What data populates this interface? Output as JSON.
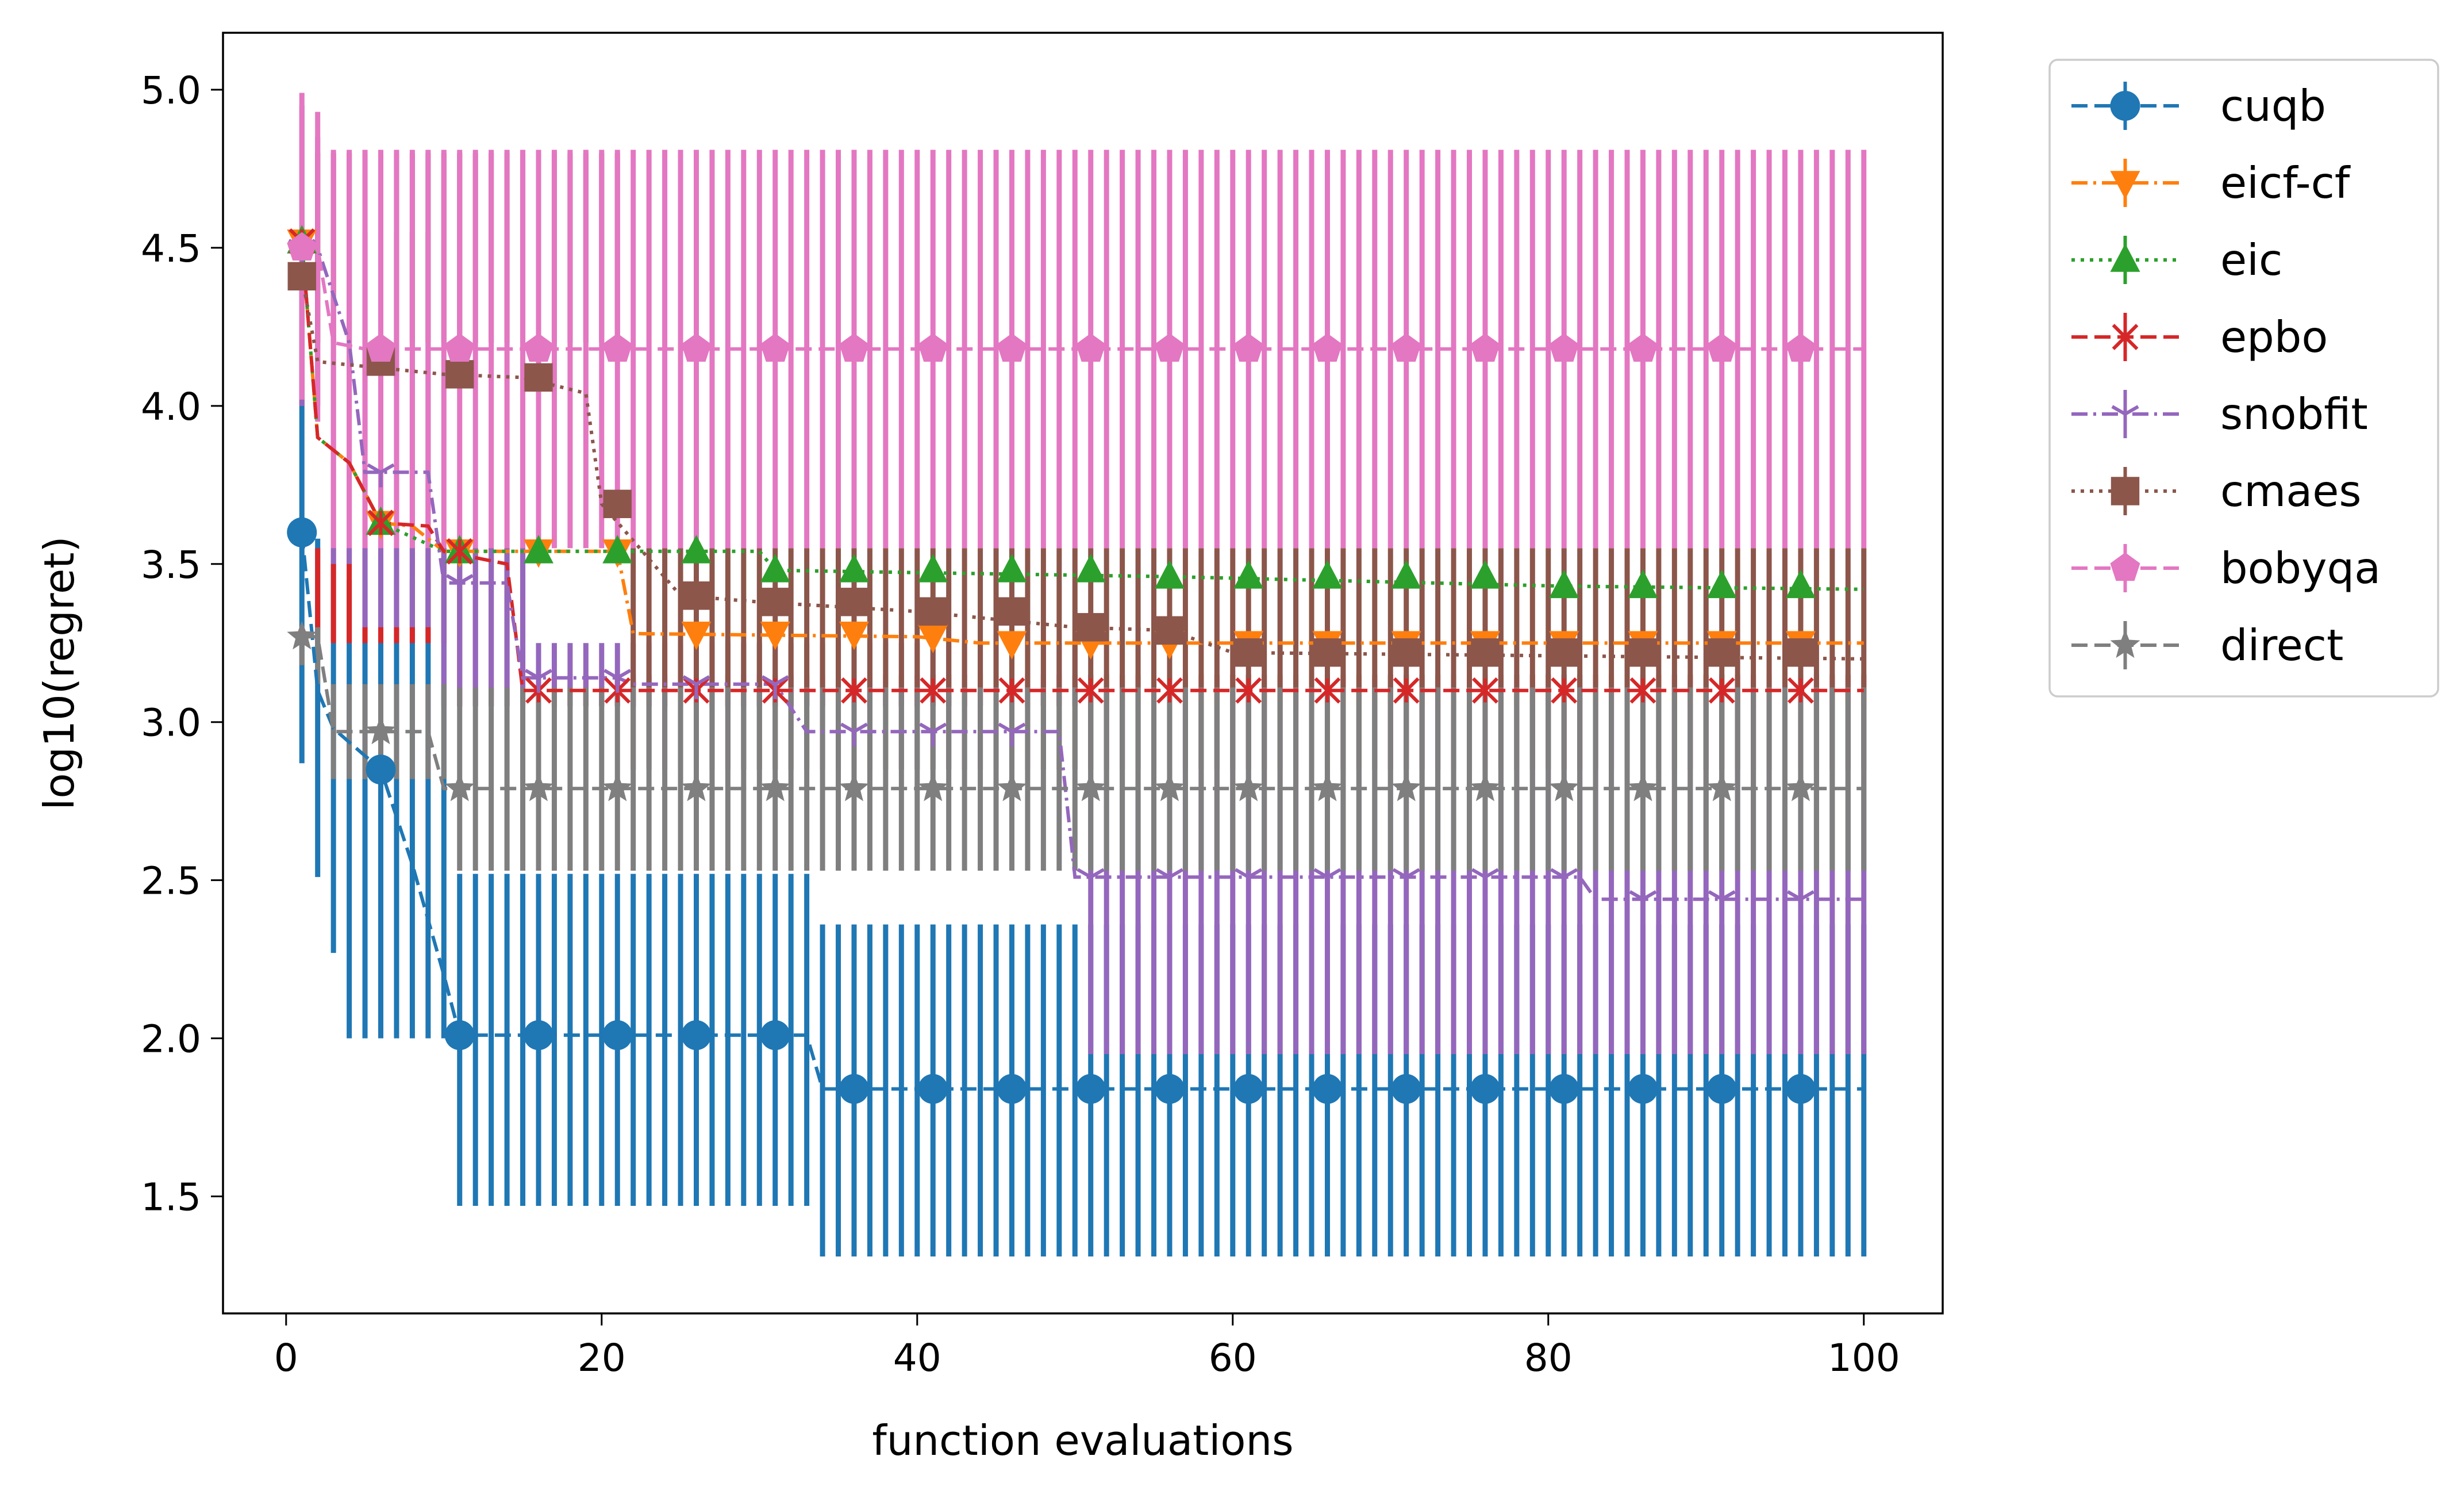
{
  "chart_data": {
    "type": "line",
    "title": "",
    "xlabel": "function evaluations",
    "ylabel": "log10(regret)",
    "xlim": [
      -4,
      105
    ],
    "ylim": [
      1.13,
      5.18
    ],
    "xticks": [
      0,
      20,
      40,
      60,
      80,
      100
    ],
    "yticks": [
      1.5,
      2.0,
      2.5,
      3.0,
      3.5,
      4.0,
      4.5,
      5.0
    ],
    "xtick_labels": [
      "0",
      "20",
      "40",
      "60",
      "80",
      "100"
    ],
    "ytick_labels": [
      "1.5",
      "2.0",
      "2.5",
      "3.0",
      "3.5",
      "4.0",
      "4.5",
      "5.0"
    ],
    "legend_position": "outside-right-top",
    "markers_x": [
      1,
      6,
      11,
      16,
      21,
      26,
      31,
      36,
      41,
      46,
      51,
      56,
      61,
      66,
      71,
      76,
      81,
      86,
      91,
      96
    ],
    "series": [
      {
        "name": "cuqb",
        "color": "#1f77b4",
        "marker": "circle",
        "linestyle": "dashed",
        "steps": [
          [
            1,
            3.6
          ],
          [
            2,
            3.1
          ],
          [
            3,
            2.98
          ],
          [
            6,
            2.85
          ],
          [
            8,
            2.55
          ],
          [
            10,
            2.2
          ],
          [
            11,
            2.01
          ],
          [
            33,
            2.01
          ],
          [
            34,
            1.84
          ],
          [
            100,
            1.84
          ]
        ],
        "error_bands": [
          [
            1,
            1,
            2.87,
            4.0
          ],
          [
            2,
            2,
            2.51,
            3.58
          ],
          [
            3,
            3,
            2.27,
            3.5
          ],
          [
            4,
            10,
            2.0,
            3.45
          ],
          [
            11,
            33,
            1.47,
            2.52
          ],
          [
            34,
            100,
            1.31,
            2.36
          ]
        ]
      },
      {
        "name": "eicf-cf",
        "color": "#ff7f0e",
        "marker": "triangle-down",
        "linestyle": "dashdot",
        "steps": [
          [
            1,
            4.52
          ],
          [
            2,
            3.9
          ],
          [
            4,
            3.82
          ],
          [
            6,
            3.63
          ],
          [
            8,
            3.62
          ],
          [
            10,
            3.54
          ],
          [
            21,
            3.54
          ],
          [
            22,
            3.28
          ],
          [
            40,
            3.27
          ],
          [
            44,
            3.25
          ],
          [
            100,
            3.25
          ]
        ],
        "error_bands": []
      },
      {
        "name": "eic",
        "color": "#2ca02c",
        "marker": "triangle-up",
        "linestyle": "dotted",
        "steps": [
          [
            1,
            4.52
          ],
          [
            2,
            3.9
          ],
          [
            4,
            3.82
          ],
          [
            6,
            3.63
          ],
          [
            10,
            3.54
          ],
          [
            30,
            3.54
          ],
          [
            31,
            3.48
          ],
          [
            56,
            3.46
          ],
          [
            81,
            3.43
          ],
          [
            100,
            3.42
          ]
        ],
        "error_bands": []
      },
      {
        "name": "epbo",
        "color": "#d62728",
        "marker": "x",
        "linestyle": "dashed",
        "steps": [
          [
            1,
            4.52
          ],
          [
            2,
            3.9
          ],
          [
            4,
            3.82
          ],
          [
            6,
            3.63
          ],
          [
            9,
            3.62
          ],
          [
            10,
            3.54
          ],
          [
            14,
            3.5
          ],
          [
            15,
            3.1
          ],
          [
            100,
            3.1
          ]
        ],
        "error_bands": [
          [
            1,
            1,
            4.0,
            4.52
          ],
          [
            2,
            10,
            3.25,
            3.55
          ],
          [
            11,
            15,
            3.05,
            3.55
          ],
          [
            16,
            100,
            3.05,
            3.15
          ]
        ]
      },
      {
        "name": "snobfit",
        "color": "#9467bd",
        "marker": "tri",
        "linestyle": "dashdot",
        "steps": [
          [
            1,
            4.5
          ],
          [
            2,
            4.5
          ],
          [
            4,
            4.2
          ],
          [
            5,
            3.79
          ],
          [
            9,
            3.79
          ],
          [
            10,
            3.44
          ],
          [
            14,
            3.44
          ],
          [
            15,
            3.14
          ],
          [
            21,
            3.14
          ],
          [
            22,
            3.12
          ],
          [
            31,
            3.12
          ],
          [
            33,
            2.97
          ],
          [
            49,
            2.97
          ],
          [
            50,
            2.51
          ],
          [
            82,
            2.51
          ],
          [
            83,
            2.44
          ],
          [
            100,
            2.44
          ]
        ],
        "error_bands": [
          [
            1,
            1,
            4.0,
            4.95
          ],
          [
            2,
            2,
            4.0,
            4.85
          ],
          [
            3,
            4,
            3.5,
            4.8
          ],
          [
            5,
            9,
            3.3,
            4.55
          ],
          [
            10,
            15,
            3.05,
            3.55
          ],
          [
            16,
            50,
            3.05,
            3.25
          ],
          [
            51,
            100,
            1.95,
            3.05
          ]
        ]
      },
      {
        "name": "cmaes",
        "color": "#8c564b",
        "marker": "square",
        "linestyle": "dotted",
        "steps": [
          [
            1,
            4.41
          ],
          [
            2,
            4.14
          ],
          [
            10,
            4.1
          ],
          [
            15,
            4.09
          ],
          [
            19,
            4.04
          ],
          [
            20,
            3.69
          ],
          [
            25,
            3.4
          ],
          [
            30,
            3.38
          ],
          [
            40,
            3.35
          ],
          [
            50,
            3.3
          ],
          [
            56,
            3.29
          ],
          [
            60,
            3.22
          ],
          [
            100,
            3.2
          ]
        ],
        "error_bands": [
          [
            1,
            1,
            4.38,
            4.42
          ],
          [
            2,
            21,
            4.2,
            4.8
          ],
          [
            22,
            100,
            2.85,
            3.55
          ]
        ]
      },
      {
        "name": "bobyqa",
        "color": "#e377c2",
        "marker": "pentagon",
        "linestyle": "dashed",
        "steps": [
          [
            1,
            4.5
          ],
          [
            2,
            4.5
          ],
          [
            3,
            4.2
          ],
          [
            5,
            4.18
          ],
          [
            100,
            4.18
          ]
        ],
        "error_bands": [
          [
            1,
            1,
            4.02,
            4.99
          ],
          [
            2,
            2,
            3.95,
            4.93
          ],
          [
            3,
            100,
            3.55,
            4.81
          ]
        ]
      },
      {
        "name": "direct",
        "color": "#7f7f7f",
        "marker": "star",
        "linestyle": "dashed",
        "steps": [
          [
            1,
            3.27
          ],
          [
            2,
            3.27
          ],
          [
            3,
            2.97
          ],
          [
            9,
            2.97
          ],
          [
            10,
            2.79
          ],
          [
            100,
            2.79
          ]
        ],
        "error_bands": [
          [
            1,
            1,
            3.18,
            3.3
          ],
          [
            2,
            2,
            3.12,
            3.3
          ],
          [
            3,
            10,
            2.82,
            3.12
          ],
          [
            11,
            100,
            2.53,
            3.11
          ]
        ]
      }
    ]
  }
}
